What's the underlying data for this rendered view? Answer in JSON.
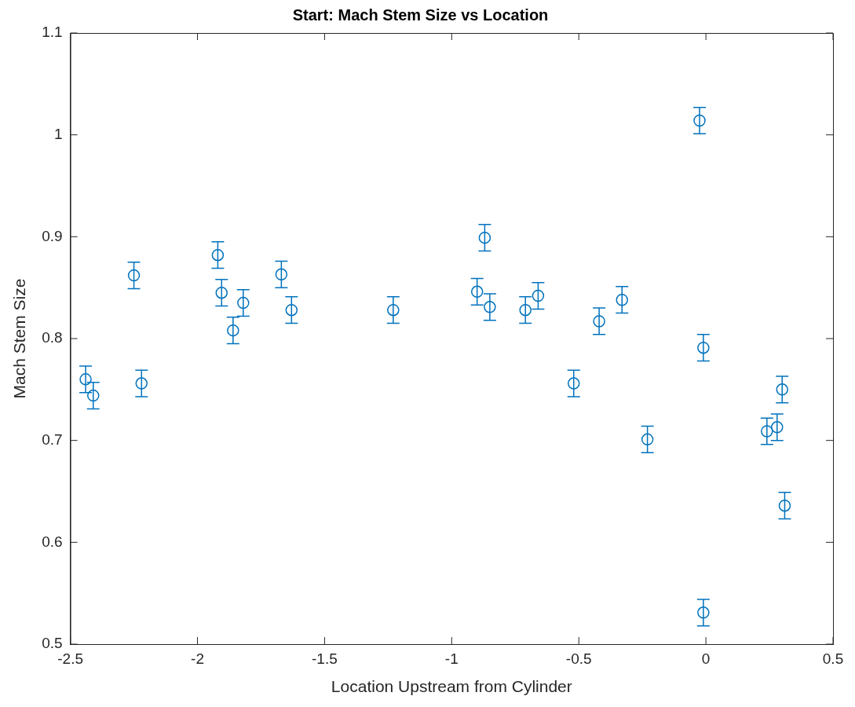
{
  "chart_data": {
    "type": "scatter",
    "title": "Start: Mach Stem Size vs Location",
    "xlabel": "Location Upstream from Cylinder",
    "ylabel": "Mach Stem Size",
    "series": [
      {
        "color": "#0072bd",
        "x": [
          -2.44,
          -2.41,
          -2.25,
          -2.22,
          -1.92,
          -1.905,
          -1.86,
          -1.82,
          -1.67,
          -1.63,
          -1.23,
          -0.9,
          -0.87,
          -0.85,
          -0.71,
          -0.66,
          -0.52,
          -0.42,
          -0.33,
          -0.23,
          -0.025,
          -0.01,
          -0.01,
          0.24,
          0.28,
          0.3,
          0.31
        ],
        "values": [
          0.76,
          0.744,
          0.862,
          0.756,
          0.882,
          0.845,
          0.808,
          0.835,
          0.863,
          0.828,
          0.828,
          0.846,
          0.899,
          0.831,
          0.828,
          0.842,
          0.756,
          0.817,
          0.838,
          0.701,
          1.014,
          0.791,
          0.531,
          0.709,
          0.713,
          0.75,
          0.636
        ],
        "errors": [
          0.013,
          0.013,
          0.013,
          0.013,
          0.013,
          0.013,
          0.013,
          0.013,
          0.013,
          0.013,
          0.013,
          0.013,
          0.013,
          0.013,
          0.013,
          0.013,
          0.013,
          0.013,
          0.013,
          0.013,
          0.013,
          0.013,
          0.013,
          0.013,
          0.013,
          0.013,
          0.013
        ]
      }
    ],
    "xlim": [
      -2.5,
      0.5
    ],
    "xticks": [
      -2.5,
      -2,
      -1.5,
      -1,
      -0.5,
      0,
      0.5
    ],
    "ylim": [
      0.5,
      1.1
    ],
    "yticks": [
      0.5,
      0.6,
      0.7,
      0.8,
      0.9,
      1,
      1.1
    ],
    "grid": false,
    "legend": false,
    "marker": "circle"
  }
}
